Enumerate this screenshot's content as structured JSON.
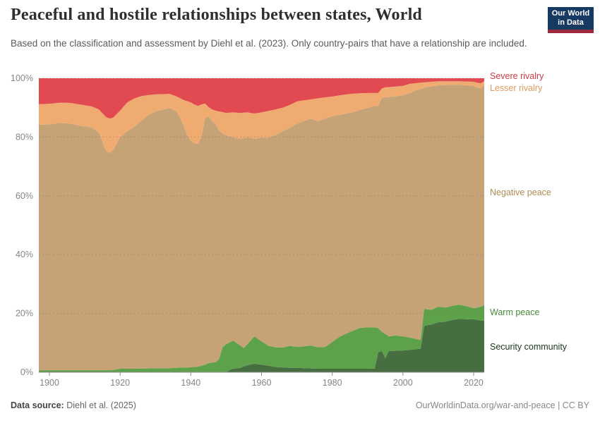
{
  "header": {
    "title": "Peaceful and hostile relationships between states, World",
    "subtitle": "Based on the classification and assessment by Diehl et al. (2023). Only country-pairs that have a relationship are included.",
    "logo": {
      "line1": "Our World",
      "line2": "in Data",
      "bg_color": "#173a63",
      "accent_color": "#a12b3e"
    }
  },
  "footer": {
    "source_label": "Data source:",
    "source_text": " Diehl et al. (2025)",
    "license_text": "OurWorldinData.org/war-and-peace | CC BY"
  },
  "chart_data": {
    "type": "area",
    "stacked": true,
    "title": "Peaceful and hostile relationships between states, World",
    "xlabel": "",
    "ylabel": "",
    "xlim": [
      1897,
      2023
    ],
    "ylim": [
      0,
      100
    ],
    "xticks": [
      1900,
      1920,
      1940,
      1960,
      1980,
      2000,
      2020
    ],
    "yticks_values": [
      0,
      20,
      40,
      60,
      80,
      100
    ],
    "yticks_labels": [
      "0%",
      "20%",
      "40%",
      "60%",
      "80%",
      "100%"
    ],
    "grid": "dashed-horizontal",
    "legend_position": "right-edge-labels",
    "axis_color": "#858585",
    "x": [
      1897,
      1900,
      1903,
      1906,
      1909,
      1912,
      1914,
      1916,
      1917,
      1918,
      1920,
      1922,
      1924,
      1926,
      1928,
      1930,
      1932,
      1934,
      1936,
      1938,
      1939,
      1940,
      1941,
      1942,
      1943,
      1944,
      1945,
      1946,
      1947,
      1948,
      1949,
      1950,
      1951,
      1952,
      1954,
      1955,
      1956,
      1958,
      1960,
      1962,
      1964,
      1966,
      1968,
      1970,
      1972,
      1974,
      1976,
      1978,
      1980,
      1982,
      1984,
      1986,
      1988,
      1990,
      1992,
      1993,
      1994,
      1995,
      1996,
      1998,
      2000,
      2002,
      2004,
      2005,
      2006,
      2008,
      2010,
      2012,
      2014,
      2016,
      2018,
      2020,
      2021,
      2022,
      2023
    ],
    "series": [
      {
        "name": "Security community",
        "color": "#466e41",
        "label_color": "#22391f",
        "values": [
          0,
          0,
          0,
          0,
          0,
          0,
          0,
          0,
          0,
          0,
          0,
          0,
          0,
          0,
          0,
          0,
          0,
          0,
          0,
          0,
          0,
          0,
          0,
          0,
          0,
          0,
          0,
          0,
          0,
          0,
          0,
          0,
          0.8,
          1.2,
          1.5,
          2,
          2.4,
          2.9,
          2.6,
          2.2,
          1.8,
          1.6,
          1.5,
          1.5,
          1.4,
          1.3,
          1.2,
          1.2,
          1.2,
          1.2,
          1.2,
          1.2,
          1.2,
          1.2,
          1.3,
          6.8,
          7.2,
          4.8,
          7.2,
          7.3,
          7.4,
          7.6,
          7.9,
          8,
          15.8,
          16.2,
          17,
          17.2,
          17.8,
          18.2,
          18,
          18,
          17.8,
          17.6,
          17.5
        ]
      },
      {
        "name": "Warm peace",
        "color": "#5da14a",
        "label_color": "#468a3a",
        "values": [
          0.7,
          0.7,
          0.7,
          0.7,
          0.7,
          0.7,
          0.7,
          0.7,
          0.7,
          0.8,
          1.2,
          1.2,
          1.2,
          1.3,
          1.3,
          1.4,
          1.4,
          1.4,
          1.5,
          1.6,
          1.6,
          1.7,
          1.8,
          1.9,
          2.2,
          2.6,
          3.1,
          3.3,
          3.4,
          4.5,
          8.6,
          9.5,
          9.4,
          9.6,
          7.6,
          6.2,
          7.2,
          9.3,
          7.9,
          6.8,
          6.7,
          6.8,
          7.5,
          7.1,
          7.4,
          7.8,
          7.3,
          7.4,
          9.1,
          10.8,
          12,
          13,
          13.9,
          14.1,
          14,
          8.2,
          6.6,
          8.2,
          5,
          5.2,
          4.8,
          4.2,
          3.3,
          3,
          5.8,
          5,
          5.3,
          4.8,
          4.8,
          4.8,
          4.5,
          3.8,
          4.2,
          4.7,
          5.3
        ]
      },
      {
        "name": "Negative peace",
        "color": "#c6a377",
        "label_color": "#ae8b54",
        "values": [
          83.5,
          83.6,
          84.1,
          83.9,
          83.1,
          82.6,
          80.8,
          74.6,
          73.9,
          74.7,
          78.8,
          80.8,
          82.3,
          84.2,
          86.2,
          87.3,
          87.9,
          88.5,
          87.2,
          82.3,
          79,
          77,
          76.1,
          75.8,
          77.8,
          83.7,
          84,
          82.1,
          81.1,
          77.8,
          72.5,
          71.1,
          70,
          69.1,
          70.3,
          71.4,
          70.3,
          67.2,
          69.3,
          70.8,
          72.3,
          73.6,
          74.2,
          75.9,
          76.7,
          77.1,
          76.9,
          77.7,
          76.8,
          75.5,
          74.8,
          74.3,
          74.2,
          74.6,
          75.3,
          75.5,
          79.5,
          80.5,
          81.4,
          81.4,
          82,
          83.2,
          84.8,
          85.3,
          75.2,
          76,
          75.3,
          75.7,
          75.2,
          74.8,
          75.1,
          75.6,
          74.8,
          74.3,
          74.6
        ]
      },
      {
        "name": "Lesser rivalry",
        "color": "#f0ab71",
        "label_color": "#e09a5d",
        "values": [
          7,
          7,
          6.9,
          7,
          7.2,
          7.1,
          7.9,
          11.5,
          11.7,
          11.1,
          9,
          9.8,
          9.6,
          8.4,
          6.8,
          5.8,
          5.3,
          4.8,
          5.1,
          8.7,
          11.6,
          13.1,
          13.2,
          12.9,
          11.1,
          5.1,
          3.1,
          4,
          4.5,
          6.4,
          7.4,
          7.6,
          8.1,
          8.5,
          8.8,
          8.7,
          8.5,
          8.6,
          8.6,
          9.1,
          8.6,
          8,
          7.7,
          7.6,
          7,
          6.6,
          7.8,
          7.2,
          6.7,
          6.7,
          6.5,
          6.3,
          5.6,
          5.1,
          4.4,
          4.5,
          3.2,
          3.4,
          3.4,
          3.3,
          3.2,
          3.1,
          2.4,
          2.2,
          1.8,
          1.6,
          1.4,
          1.3,
          1.2,
          1.2,
          1.3,
          1.4,
          1.7,
          1.7,
          1.6
        ]
      },
      {
        "name": "Severe rivalry",
        "color": "#e04a50",
        "label_color": "#cc3c43",
        "values": [
          8.8,
          8.7,
          8.3,
          8.4,
          9,
          9.6,
          10.6,
          13.2,
          13.7,
          13.4,
          11,
          8.2,
          6.9,
          6.1,
          5.7,
          5.5,
          5.4,
          5.3,
          6.2,
          7.4,
          7.8,
          8.2,
          8.9,
          9.4,
          8.9,
          8.6,
          9.8,
          10.6,
          11,
          11.3,
          11.5,
          11.8,
          11.7,
          11.6,
          11.8,
          11.7,
          11.6,
          12,
          11.6,
          11.1,
          10.6,
          10,
          9.1,
          7.9,
          7.5,
          7.2,
          6.8,
          6.5,
          6.2,
          5.8,
          5.5,
          5.2,
          5.1,
          5,
          5,
          5,
          3.5,
          3.1,
          3,
          2.8,
          2.6,
          1.9,
          1.6,
          1.5,
          1.4,
          1.2,
          1,
          1,
          1,
          1,
          1.1,
          1.2,
          1.5,
          1.7,
          1
        ]
      }
    ]
  }
}
